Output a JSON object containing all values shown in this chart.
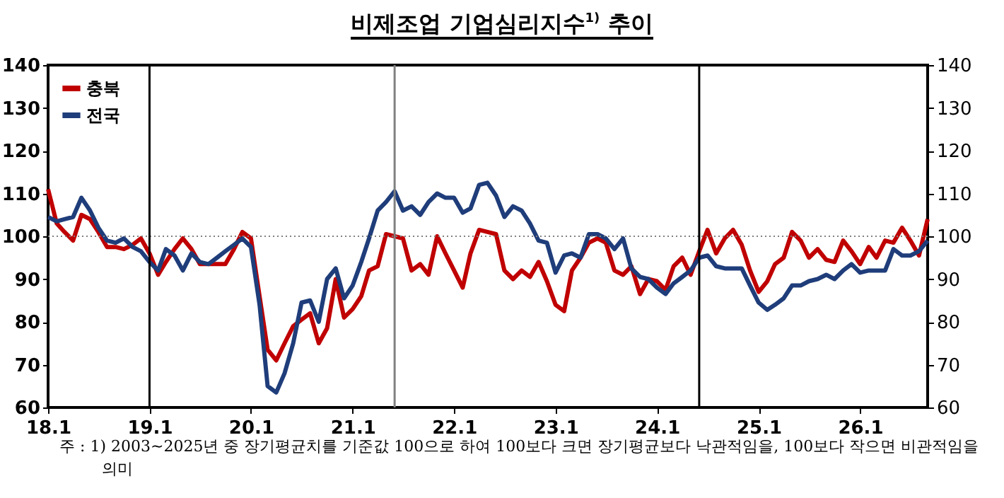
{
  "chart_data": {
    "type": "line",
    "title": "비제조업 기업심리지수$^{1)}$ 추이",
    "x": [
      "2018-01",
      "2018-02",
      "2018-03",
      "2018-04",
      "2018-05",
      "2018-06",
      "2018-07",
      "2018-08",
      "2018-09",
      "2018-10",
      "2018-11",
      "2018-12",
      "2019-01",
      "2019-02",
      "2019-03",
      "2019-04",
      "2019-05",
      "2019-06",
      "2019-07",
      "2019-08",
      "2019-09",
      "2019-10",
      "2019-11",
      "2019-12",
      "2020-01",
      "2020-02",
      "2020-03",
      "2020-04",
      "2020-05",
      "2020-06",
      "2020-07",
      "2020-08",
      "2020-09",
      "2020-10",
      "2020-11",
      "2020-12",
      "2021-01",
      "2021-02",
      "2021-03",
      "2021-04",
      "2021-05",
      "2021-06",
      "2021-07",
      "2021-08",
      "2021-09",
      "2021-10",
      "2021-11",
      "2021-12",
      "2022-01",
      "2022-02",
      "2022-03",
      "2022-04",
      "2022-05",
      "2022-06",
      "2022-07",
      "2022-08",
      "2022-09",
      "2022-10",
      "2022-11",
      "2022-12",
      "2023-01",
      "2023-02",
      "2023-03",
      "2023-04",
      "2023-05",
      "2023-06",
      "2023-07",
      "2023-08",
      "2023-09",
      "2023-10",
      "2023-11",
      "2023-12",
      "2024-01",
      "2024-02",
      "2024-03",
      "2024-04",
      "2024-05",
      "2024-06",
      "2024-07",
      "2024-08",
      "2024-09",
      "2024-10",
      "2024-11",
      "2024-12",
      "2025-01",
      "2025-02",
      "2025-03",
      "2025-04",
      "2025-05",
      "2025-06",
      "2025-07",
      "2025-08",
      "2025-09",
      "2025-10",
      "2025-11",
      "2025-12",
      "2026-01",
      "2026-02",
      "2026-03",
      "2026-04",
      "2026-05",
      "2026-06",
      "2026-07",
      "2026-08",
      "2026-09"
    ],
    "series": [
      {
        "name": "충북",
        "color": "#c00000",
        "values": [
          111,
          103,
          101,
          99,
          105,
          104,
          101,
          97.5,
          97.5,
          97,
          98,
          99.5,
          96,
          91,
          94,
          97,
          99.5,
          97,
          93.5,
          93.5,
          93.5,
          93.5,
          97,
          101,
          99.5,
          86,
          73.5,
          71,
          75,
          79,
          80.5,
          82,
          75,
          78.5,
          90,
          81,
          83,
          86,
          92,
          93,
          100.5,
          100,
          99.5,
          92,
          93.5,
          91,
          100,
          96,
          92,
          88,
          96,
          101.5,
          101,
          100.5,
          92,
          90,
          92,
          90.5,
          94,
          89.5,
          84,
          82.5,
          92,
          95,
          98.5,
          99.5,
          98.5,
          92,
          91,
          93,
          86.5,
          90,
          89.5,
          87.5,
          93,
          95,
          91,
          96.5,
          101.5,
          96,
          99.5,
          101.5,
          98,
          92,
          87,
          89.5,
          93.5,
          95,
          101,
          99,
          95,
          97,
          94.5,
          94,
          99,
          96.5,
          93.5,
          97.5,
          95,
          99,
          98.5,
          102,
          99,
          95.5,
          104
        ]
      },
      {
        "name": "전국",
        "color": "#1f3d7a",
        "values": [
          104.5,
          103.5,
          104,
          104.5,
          109,
          106,
          102,
          99,
          98.5,
          99.5,
          97.5,
          96.5,
          94,
          92,
          97,
          95.5,
          92,
          96,
          94,
          93.5,
          95,
          96.5,
          98,
          99.5,
          97.5,
          84,
          65,
          63.5,
          68,
          75,
          84.5,
          85,
          80,
          90,
          92.5,
          85.5,
          88.5,
          94,
          99.5,
          106,
          108,
          110.5,
          106,
          107,
          105,
          108,
          110,
          109,
          109,
          105.5,
          106.5,
          112,
          112.5,
          109.5,
          104.5,
          107,
          106,
          103,
          99,
          98.5,
          91.5,
          95.5,
          96,
          95,
          100.5,
          100.5,
          99.5,
          97,
          99.5,
          92.5,
          90.5,
          90,
          88,
          86.5,
          89,
          90.5,
          92,
          95,
          95.5,
          93,
          92.5,
          92.5,
          92.5,
          88.5,
          84.5,
          82.8,
          84,
          85.5,
          88.5,
          88.5,
          89.5,
          90,
          91,
          90,
          92,
          93.5,
          91.5,
          92,
          92,
          92,
          97,
          95.5,
          95.5,
          96.5,
          99
        ]
      }
    ],
    "xlim": [
      "2018-01",
      "2026-09"
    ],
    "xticks": [
      {
        "value": "2018-01",
        "label": "18.1"
      },
      {
        "value": "2019-01",
        "label": "19.1"
      },
      {
        "value": "2020-01",
        "label": "20.1"
      },
      {
        "value": "2021-01",
        "label": "21.1"
      },
      {
        "value": "2022-01",
        "label": "22.1"
      },
      {
        "value": "2023-01",
        "label": "23.1"
      },
      {
        "value": "2024-01",
        "label": "24.1"
      },
      {
        "value": "2025-01",
        "label": "25.1"
      },
      {
        "value": "2026-01",
        "label": "26.1"
      }
    ],
    "ylim": [
      60,
      140
    ],
    "yticks": [
      60,
      70,
      80,
      90,
      100,
      110,
      120,
      130,
      140
    ],
    "y2lim": [
      60,
      140
    ],
    "y2ticks": [
      60,
      70,
      80,
      90,
      100,
      110,
      120,
      130,
      140
    ],
    "ref_lines": [
      {
        "axis": "y",
        "value": 100,
        "color": "#808080",
        "line_style": "dotted"
      },
      {
        "axis": "x",
        "value": "2019-01",
        "color": "#000000",
        "line_style": "solid"
      },
      {
        "axis": "x",
        "value": "2021-06",
        "color": "#808080",
        "line_style": "solid"
      },
      {
        "axis": "x",
        "value": "2024-06",
        "color": "#000000",
        "line_style": "solid"
      }
    ],
    "legend": "top left",
    "grid": false,
    "marker": "none",
    "line_style": "solid",
    "annotations": [
      "주 : 1) 2003~2025년 중 장기평균치를 기준값 100으로 하여 100보다 크면 장기평균보다 낙관적임을, 100보다 작으면 비관적임을 의미"
    ]
  }
}
